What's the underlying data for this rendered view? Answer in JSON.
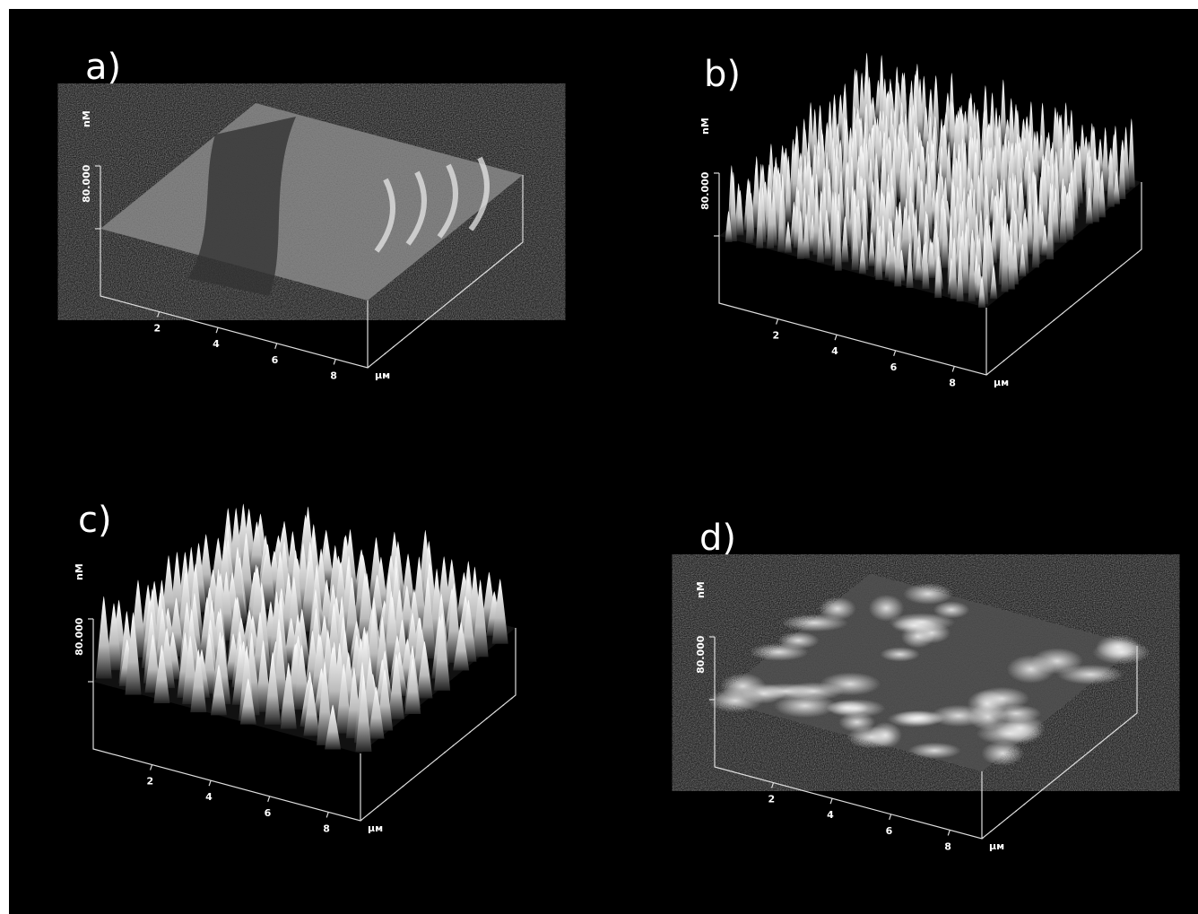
{
  "panels": [
    {
      "label": "a)",
      "z_label": "80.000",
      "z_unit": "nM",
      "x_ticks": [
        "2",
        "4",
        "6",
        "8"
      ],
      "x_unit": "μм"
    },
    {
      "label": "b)",
      "z_label": "80.000",
      "z_unit": "nM",
      "x_ticks": [
        "2",
        "4",
        "6",
        "8"
      ],
      "x_unit": "μм"
    },
    {
      "label": "c)",
      "z_label": "80.000",
      "z_unit": "nM",
      "x_ticks": [
        "2",
        "4",
        "6",
        "8"
      ],
      "x_unit": "μм"
    },
    {
      "label": "d)",
      "z_label": "80.000",
      "z_unit": "nM",
      "x_ticks": [
        "2",
        "4",
        "6",
        "8"
      ],
      "x_unit": "μм"
    }
  ]
}
